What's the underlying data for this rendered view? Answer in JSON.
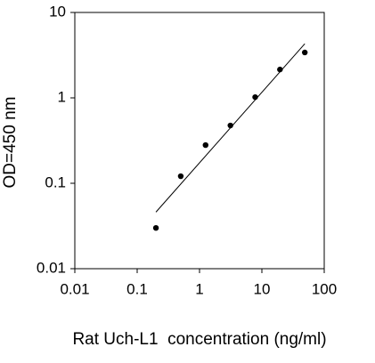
{
  "chart_data": {
    "type": "scatter",
    "xlabel": "Rat Uch-L1  concentration (ng/ml)",
    "ylabel": "OD=450 nm",
    "x": [
      0.2,
      0.5,
      1.25,
      3.13,
      7.81,
      19.5,
      48.8
    ],
    "series": [
      {
        "color": "#000000",
        "values": [
          0.03,
          0.121,
          0.28,
          0.475,
          1.02,
          2.15,
          3.4
        ]
      }
    ],
    "trendline": {
      "x": [
        0.2,
        48.8
      ],
      "y": [
        0.046,
        4.3
      ]
    },
    "xscale": "log",
    "yscale": "log",
    "xlim": [
      0.01,
      100
    ],
    "ylim": [
      0.01,
      10
    ],
    "xticks": [
      0.01,
      0.1,
      1,
      10,
      100
    ],
    "yticks": [
      0.01,
      0.1,
      1,
      10
    ],
    "grid": false
  }
}
